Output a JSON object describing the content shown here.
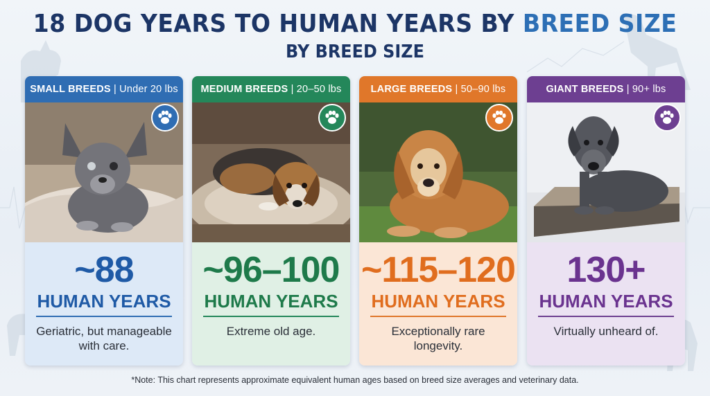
{
  "header": {
    "title_main": "18 DOG YEARS TO HUMAN YEARS BY ",
    "title_accent": "BREED SIZE",
    "subtitle": "BY BREED SIZE"
  },
  "cards": [
    {
      "category": "SMALL BREEDS",
      "weight": "| Under 20 lbs",
      "years": "~88",
      "unit": "HUMAN YEARS",
      "description": "Geriatric, but manageable with care.",
      "icon": "paw-icon",
      "header_color": "#2f6db3",
      "text_color": "#1f5aa6",
      "body_color": "#dde9f7"
    },
    {
      "category": "MEDIUM BREEDS",
      "weight": "| 20–50 lbs",
      "years": "~96–100",
      "unit": "HUMAN YEARS",
      "description": "Extreme old age.",
      "icon": "paw-icon",
      "header_color": "#24875a",
      "text_color": "#1e7a4a",
      "body_color": "#e0f0e5"
    },
    {
      "category": "LARGE BREEDS",
      "weight": "| 50–90 lbs",
      "years": "~115–120",
      "unit": "HUMAN YEARS",
      "description": "Exceptionally rare longevity.",
      "icon": "paw-icon",
      "header_color": "#e0772a",
      "text_color": "#e06d1e",
      "body_color": "#fbe6d6"
    },
    {
      "category": "GIANT BREEDS",
      "weight": "| 90+ lbs",
      "years": "130+",
      "unit": "HUMAN YEARS",
      "description": "Virtually unheard of.",
      "icon": "paw-icon",
      "header_color": "#6d3f91",
      "text_color": "#6a338f",
      "body_color": "#ebe2f2"
    }
  ],
  "footnote": "*Note: This chart represents approximate equivalent human ages based on breed size averages and veterinary data."
}
